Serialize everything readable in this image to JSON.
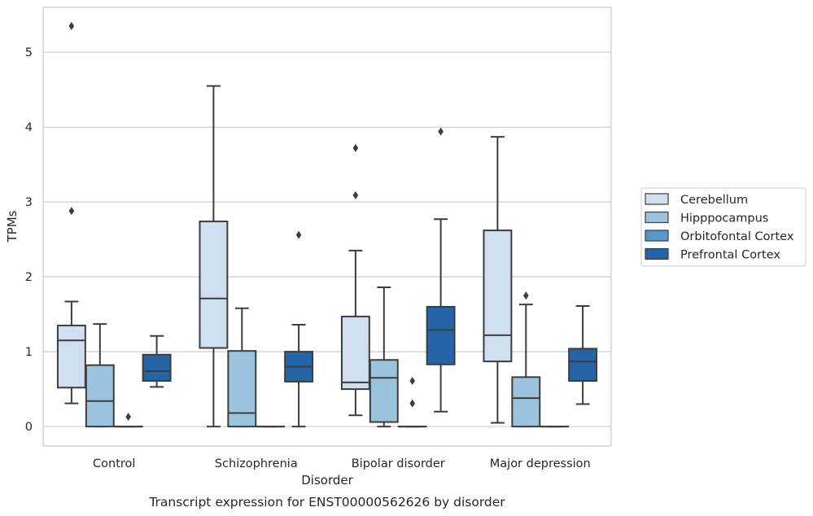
{
  "chart_data": {
    "type": "box",
    "title": "Transcript expression for ENST00000562626 by disorder",
    "xlabel": "Disorder",
    "ylabel": "TPMs",
    "ylim": [
      -0.26,
      5.6
    ],
    "yticks": [
      0,
      1,
      2,
      3,
      4,
      5
    ],
    "grid": true,
    "legend_position": "right",
    "categories": [
      "Control",
      "Schizophrenia",
      "Bipolar disorder",
      "Major depression"
    ],
    "series": [
      {
        "name": "Cerebellum",
        "color": "#d0dff0",
        "boxes": [
          {
            "whislo": 0.31,
            "q1": 0.52,
            "med": 1.15,
            "q3": 1.35,
            "whishi": 1.67,
            "fliers": [
              2.88,
              5.35
            ]
          },
          {
            "whislo": 0.0,
            "q1": 1.05,
            "med": 1.71,
            "q3": 2.74,
            "whishi": 4.55,
            "fliers": []
          },
          {
            "whislo": 0.15,
            "q1": 0.5,
            "med": 0.59,
            "q3": 1.47,
            "whishi": 2.35,
            "fliers": [
              3.09,
              3.72
            ]
          },
          {
            "whislo": 0.05,
            "q1": 0.87,
            "med": 1.22,
            "q3": 2.62,
            "whishi": 3.87,
            "fliers": []
          }
        ]
      },
      {
        "name": "Hipppocampus",
        "color": "#9bc3dd",
        "boxes": [
          {
            "whislo": 0.0,
            "q1": 0.0,
            "med": 0.34,
            "q3": 0.82,
            "whishi": 1.37,
            "fliers": []
          },
          {
            "whislo": 0.0,
            "q1": 0.0,
            "med": 0.18,
            "q3": 1.01,
            "whishi": 1.58,
            "fliers": []
          },
          {
            "whislo": 0.0,
            "q1": 0.06,
            "med": 0.65,
            "q3": 0.89,
            "whishi": 1.86,
            "fliers": []
          },
          {
            "whislo": 0.0,
            "q1": 0.0,
            "med": 0.38,
            "q3": 0.66,
            "whishi": 1.63,
            "fliers": [
              1.75
            ]
          }
        ]
      },
      {
        "name": "Orbitofontal Cortex",
        "color": "#5697c8",
        "boxes": [
          {
            "whislo": 0.0,
            "q1": 0.0,
            "med": 0.0,
            "q3": 0.0,
            "whishi": 0.0,
            "fliers": [
              0.13
            ]
          },
          {
            "whislo": 0.0,
            "q1": 0.0,
            "med": 0.0,
            "q3": 0.0,
            "whishi": 0.0,
            "fliers": []
          },
          {
            "whislo": 0.0,
            "q1": 0.0,
            "med": 0.0,
            "q3": 0.0,
            "whishi": 0.0,
            "fliers": [
              0.31,
              0.61
            ]
          },
          {
            "whislo": 0.0,
            "q1": 0.0,
            "med": 0.0,
            "q3": 0.0,
            "whishi": 0.0,
            "fliers": []
          }
        ]
      },
      {
        "name": "Prefrontal Cortex",
        "color": "#2464a7",
        "boxes": [
          {
            "whislo": 0.53,
            "q1": 0.61,
            "med": 0.74,
            "q3": 0.96,
            "whishi": 1.21,
            "fliers": []
          },
          {
            "whislo": 0.0,
            "q1": 0.6,
            "med": 0.8,
            "q3": 1.0,
            "whishi": 1.36,
            "fliers": [
              2.56
            ]
          },
          {
            "whislo": 0.2,
            "q1": 0.83,
            "med": 1.29,
            "q3": 1.6,
            "whishi": 2.77,
            "fliers": [
              3.94
            ]
          },
          {
            "whislo": 0.3,
            "q1": 0.61,
            "med": 0.87,
            "q3": 1.04,
            "whishi": 1.61,
            "fliers": []
          }
        ]
      }
    ]
  }
}
